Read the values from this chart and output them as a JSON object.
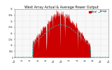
{
  "title": "West Array Actual & Average Power Output",
  "title_fontsize": 3.5,
  "background_color": "#ffffff",
  "plot_bg_color": "#f8f8f8",
  "grid_color": "#aaaaaa",
  "fill_color": "#cc0000",
  "line_color": "#cc0000",
  "avg_line_color": "#00bbbb",
  "ylim": [
    0,
    4000
  ],
  "yticks": [
    0,
    500,
    1000,
    1500,
    2000,
    2500,
    3000,
    3500,
    4000
  ],
  "ytick_labels": [
    "0",
    "500",
    "1k",
    "1.5k",
    "2k",
    "2.5k",
    "3k",
    "3.5k",
    "4k"
  ],
  "xtick_labels": [
    "12a",
    "2a",
    "4a",
    "6a",
    "8a",
    "10a",
    "12p",
    "2p",
    "4p",
    "6p",
    "8p",
    "10p",
    "12a"
  ],
  "num_points": 288,
  "peak_time_actual": 700,
  "peak_power_actual": 3600,
  "peak_time_avg": 710,
  "peak_power_avg": 2700
}
